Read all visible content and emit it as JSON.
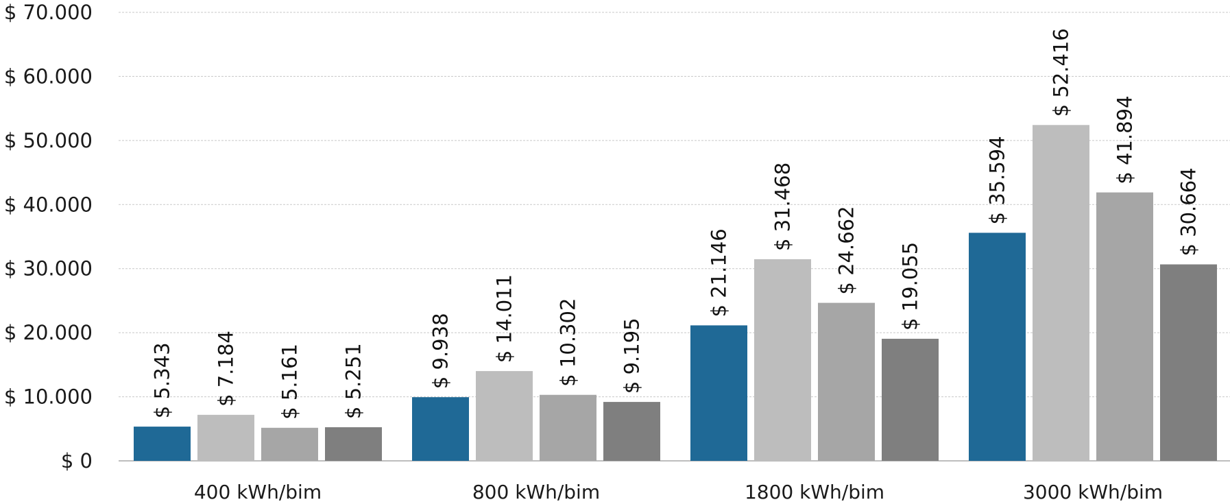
{
  "chart_data": {
    "type": "bar",
    "categories": [
      "400 kWh/bim",
      "800 kWh/bim",
      "1800 kWh/bim",
      "3000 kWh/bim"
    ],
    "series": [
      {
        "values": [
          5343,
          9938,
          21146,
          35594
        ],
        "color": "#1f6996"
      },
      {
        "values": [
          7184,
          14011,
          31468,
          52416
        ],
        "color": "#bdbdbd"
      },
      {
        "values": [
          5161,
          10302,
          24662,
          41894
        ],
        "color": "#a6a6a6"
      },
      {
        "values": [
          5251,
          9195,
          19055,
          30664
        ],
        "color": "#7f7f7f"
      }
    ],
    "data_labels": [
      [
        "$ 5.343",
        "$ 9.938",
        "$ 21.146",
        "$ 35.594"
      ],
      [
        "$ 7.184",
        "$ 14.011",
        "$ 31.468",
        "$ 52.416"
      ],
      [
        "$ 5.161",
        "$ 10.302",
        "$ 24.662",
        "$ 41.894"
      ],
      [
        "$ 5.251",
        "$ 9.195",
        "$ 19.055",
        "$ 30.664"
      ]
    ],
    "y_ticks": [
      0,
      10000,
      20000,
      30000,
      40000,
      50000,
      60000,
      70000
    ],
    "y_tick_labels": [
      "$ 0",
      "$ 10.000",
      "$ 20.000",
      "$ 30.000",
      "$ 40.000",
      "$ 50.000",
      "$ 60.000",
      "$ 70.000"
    ],
    "ylim": [
      0,
      70000
    ],
    "grid": true,
    "legend": "none",
    "title": "",
    "xlabel": "",
    "ylabel": ""
  }
}
